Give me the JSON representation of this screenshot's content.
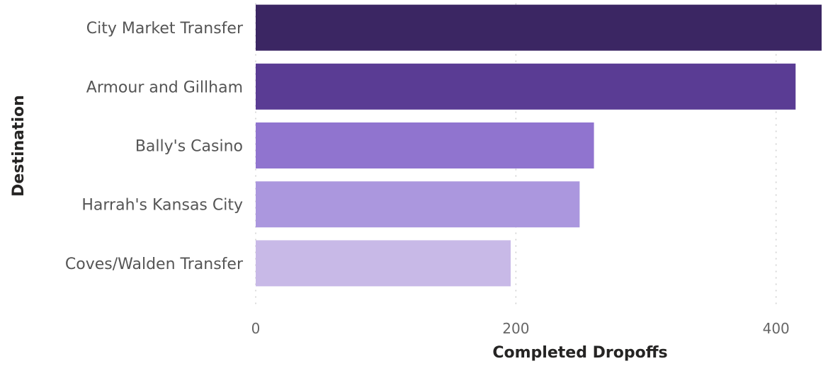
{
  "chart_data": {
    "type": "bar",
    "orientation": "horizontal",
    "categories": [
      "City Market Transfer",
      "Armour and Gillham",
      "Bally's Casino",
      "Harrah's Kansas City",
      "Coves/Walden Transfer"
    ],
    "values": [
      435,
      415,
      260,
      249,
      196
    ],
    "colors": [
      "#3b2663",
      "#5a3c94",
      "#9074cf",
      "#ab97de",
      "#c8b9e7"
    ],
    "xlabel": "Completed Dropoffs",
    "ylabel": "Destination",
    "xlim": [
      0,
      435
    ],
    "xticks": [
      0,
      200,
      400
    ],
    "xtick_labels": [
      "0",
      "200",
      "400"
    ],
    "grid": true,
    "legend": "none"
  }
}
